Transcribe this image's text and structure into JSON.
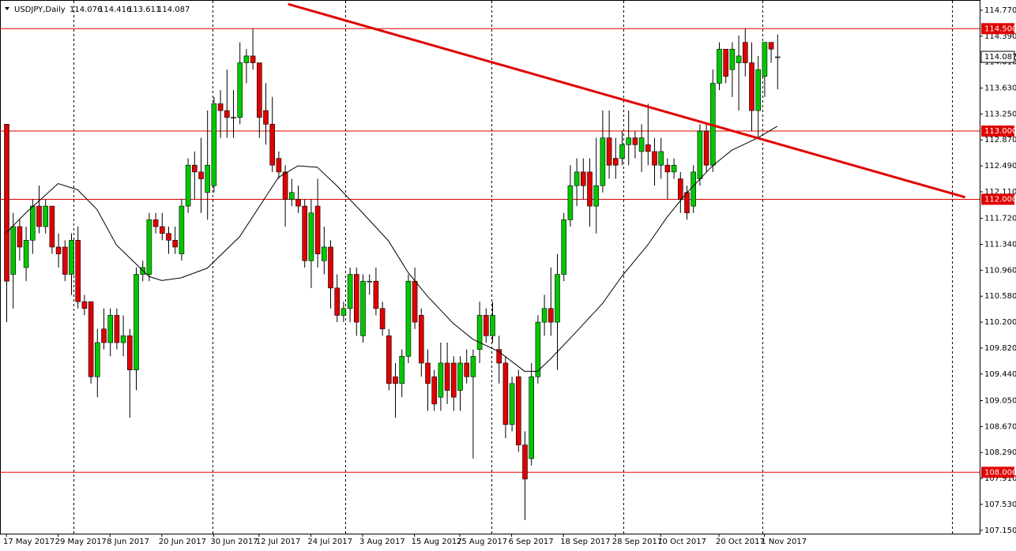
{
  "chart_data": {
    "type": "candlestick",
    "symbol": "USDJPY,Daily",
    "up_color": "#00c800",
    "down_color": "#e00000",
    "line_color": "#e00000",
    "ylim": [
      107.101,
      114.92
    ],
    "yticks": [
      {
        "value": 107.15,
        "label": "107.150"
      },
      {
        "value": 107.53,
        "label": "107.530"
      },
      {
        "value": 107.91,
        "label": "107.910"
      },
      {
        "value": 108.29,
        "label": "108.290"
      },
      {
        "value": 108.67,
        "label": "108.670"
      },
      {
        "value": 109.05,
        "label": "109.050"
      },
      {
        "value": 109.44,
        "label": "109.440"
      },
      {
        "value": 109.82,
        "label": "109.820"
      },
      {
        "value": 110.2,
        "label": "110.200"
      },
      {
        "value": 110.58,
        "label": "110.580"
      },
      {
        "value": 110.96,
        "label": "110.960"
      },
      {
        "value": 111.34,
        "label": "111.340"
      },
      {
        "value": 111.72,
        "label": "111.720"
      },
      {
        "value": 112.11,
        "label": "112.110"
      },
      {
        "value": 112.49,
        "label": "112.490"
      },
      {
        "value": 112.87,
        "label": "112.870"
      },
      {
        "value": 113.25,
        "label": "113.250"
      },
      {
        "value": 113.63,
        "label": "113.630"
      },
      {
        "value": 114.01,
        "label": "114.010"
      },
      {
        "value": 114.39,
        "label": "114.390"
      },
      {
        "value": 114.77,
        "label": "114.770"
      }
    ],
    "levels": [
      {
        "value": 114.5,
        "label": "114.500"
      },
      {
        "value": 113.0,
        "label": "113.000"
      },
      {
        "value": 112.0,
        "label": "112.000"
      },
      {
        "value": 108.0,
        "label": "108.000"
      }
    ],
    "categories": [
      "17 May 2017",
      null,
      null,
      null,
      null,
      null,
      null,
      null,
      "29 May 2017",
      null,
      null,
      null,
      null,
      null,
      null,
      null,
      "8 Jun 2017",
      null,
      null,
      null,
      null,
      null,
      null,
      null,
      "20 Jun 2017",
      null,
      null,
      null,
      null,
      null,
      null,
      null,
      "30 Jun 2017",
      null,
      null,
      null,
      null,
      null,
      null,
      "12 Jul 2017",
      null,
      null,
      null,
      null,
      null,
      null,
      null,
      "24 Jul 2017",
      null,
      null,
      null,
      null,
      null,
      null,
      null,
      "3 Aug 2017",
      null,
      null,
      null,
      null,
      null,
      null,
      null,
      "15 Aug 2017",
      null,
      null,
      null,
      null,
      null,
      null,
      "25 Aug 2017",
      null,
      null,
      null,
      null,
      null,
      null,
      null,
      "6 Sep 2017",
      null,
      null,
      null,
      null,
      null,
      null,
      null,
      "18 Sep 2017",
      null,
      null,
      null,
      null,
      null,
      null,
      null,
      "28 Sep 2017",
      null,
      null,
      null,
      null,
      null,
      null,
      "10 Oct 2017",
      null,
      null,
      null,
      null,
      null,
      null,
      null,
      null,
      "20 Oct 2017",
      null,
      null,
      null,
      null,
      null,
      null,
      "1 Nov 2017",
      null,
      null
    ],
    "open": [
      113.1,
      110.9,
      111.6,
      111.0,
      111.4,
      111.9,
      111.6,
      111.9,
      111.3,
      111.3,
      110.9,
      111.4,
      110.5,
      110.5,
      109.4,
      110.1,
      109.9,
      110.3,
      109.9,
      110.0,
      109.5,
      110.9,
      110.9,
      111.7,
      111.6,
      111.5,
      111.4,
      111.2,
      111.9,
      112.5,
      112.4,
      112.1,
      112.2,
      113.4,
      113.3,
      113.2,
      113.2,
      114.0,
      114.1,
      114.0,
      113.3,
      113.1,
      112.6,
      112.4,
      112.0,
      112.0,
      111.9,
      111.1,
      111.9,
      111.1,
      111.3,
      110.7,
      110.3,
      110.4,
      110.9,
      110.0,
      110.8,
      110.8,
      110.4,
      110.0,
      109.4,
      109.3,
      109.7,
      110.8,
      110.3,
      109.6,
      109.4,
      109.1,
      109.6,
      109.6,
      109.2,
      109.6,
      109.4,
      109.8,
      110.3,
      110.0,
      109.8,
      109.6,
      108.7,
      109.4,
      108.4,
      108.2,
      109.4,
      110.2,
      110.4,
      110.2,
      110.9,
      111.7,
      112.2,
      112.4,
      112.4,
      111.9,
      112.2,
      112.9,
      112.6,
      112.6,
      112.8,
      112.9,
      112.7,
      112.8,
      112.7,
      112.5,
      112.5,
      112.4,
      112.3,
      112.1,
      111.9,
      112.3,
      113.0,
      112.5,
      113.7,
      114.2,
      113.9,
      114.0,
      114.3,
      114.0,
      113.3,
      113.8,
      114.3,
      114.076
    ],
    "high": [
      113.1,
      111.8,
      111.7,
      111.6,
      112.0,
      112.2,
      112.0,
      111.9,
      111.5,
      111.4,
      111.5,
      111.6,
      110.6,
      110.5,
      110.1,
      110.4,
      110.4,
      110.4,
      110.3,
      110.1,
      111.0,
      111.1,
      111.8,
      111.8,
      111.8,
      111.6,
      111.6,
      112.0,
      112.6,
      112.7,
      112.9,
      113.3,
      113.5,
      113.6,
      113.9,
      113.6,
      114.3,
      114.2,
      114.5,
      114.0,
      113.7,
      113.5,
      112.7,
      112.5,
      112.3,
      112.2,
      112.0,
      112.0,
      112.3,
      111.6,
      111.4,
      110.9,
      110.5,
      111.0,
      111.0,
      110.9,
      110.9,
      111.0,
      110.5,
      110.1,
      109.6,
      109.8,
      110.9,
      111.0,
      110.4,
      109.8,
      109.5,
      109.9,
      109.9,
      109.7,
      109.7,
      109.8,
      109.8,
      110.5,
      110.4,
      110.5,
      110.0,
      109.7,
      109.4,
      109.5,
      108.6,
      109.6,
      110.3,
      110.6,
      111.0,
      111.2,
      111.8,
      112.5,
      112.6,
      112.6,
      112.6,
      112.9,
      113.3,
      113.3,
      112.9,
      113.0,
      113.3,
      113.0,
      113.1,
      113.4,
      112.9,
      112.9,
      112.6,
      112.6,
      112.4,
      112.2,
      112.5,
      113.1,
      113.1,
      113.9,
      114.3,
      114.2,
      114.3,
      114.4,
      114.5,
      114.3,
      114.1,
      114.3,
      114.3,
      114.416
    ],
    "low": [
      110.2,
      110.4,
      111.1,
      110.8,
      111.2,
      111.5,
      111.5,
      111.2,
      111.0,
      110.8,
      110.6,
      110.4,
      110.3,
      109.3,
      109.1,
      109.8,
      109.7,
      109.8,
      109.7,
      108.8,
      109.2,
      110.8,
      110.8,
      111.5,
      111.4,
      111.2,
      111.2,
      111.1,
      111.8,
      112.0,
      111.8,
      111.7,
      112.1,
      112.9,
      112.9,
      112.9,
      113.1,
      113.7,
      113.9,
      112.9,
      112.8,
      112.4,
      112.3,
      111.6,
      111.9,
      111.8,
      111.0,
      110.7,
      111.0,
      110.9,
      110.4,
      110.2,
      110.2,
      110.2,
      110.0,
      109.9,
      110.6,
      110.3,
      110.0,
      109.2,
      108.8,
      109.1,
      109.6,
      110.1,
      109.4,
      108.9,
      108.9,
      108.9,
      109.0,
      108.9,
      108.9,
      109.3,
      108.2,
      109.6,
      109.9,
      109.9,
      109.3,
      108.5,
      108.6,
      108.3,
      107.3,
      108.1,
      109.3,
      110.0,
      110.0,
      109.5,
      110.8,
      111.6,
      111.9,
      112.0,
      111.6,
      111.5,
      112.1,
      112.3,
      112.3,
      112.5,
      112.5,
      112.6,
      112.4,
      112.5,
      112.2,
      112.3,
      112.0,
      112.3,
      111.8,
      111.7,
      111.8,
      112.2,
      112.4,
      112.4,
      113.6,
      113.7,
      113.5,
      113.3,
      113.8,
      113.0,
      112.9,
      113.5,
      114.0,
      113.611
    ],
    "close": [
      110.8,
      111.6,
      111.3,
      111.4,
      111.9,
      111.6,
      111.9,
      111.3,
      111.2,
      110.9,
      111.4,
      110.5,
      110.4,
      109.4,
      109.9,
      109.9,
      110.3,
      109.9,
      110.0,
      109.5,
      110.9,
      111.0,
      111.7,
      111.6,
      111.5,
      111.4,
      111.3,
      111.9,
      112.5,
      112.4,
      112.3,
      112.5,
      113.4,
      113.3,
      113.2,
      113.2,
      114.0,
      114.1,
      114.0,
      113.2,
      113.1,
      112.5,
      112.4,
      112.0,
      112.1,
      111.9,
      111.1,
      111.8,
      111.2,
      111.3,
      110.7,
      110.3,
      110.4,
      110.9,
      110.2,
      110.8,
      110.8,
      110.4,
      110.1,
      109.3,
      109.3,
      109.7,
      110.8,
      110.2,
      109.6,
      109.3,
      109.0,
      109.6,
      109.2,
      109.1,
      109.6,
      109.4,
      109.7,
      110.3,
      110.0,
      110.3,
      109.6,
      108.7,
      109.3,
      108.4,
      107.9,
      109.4,
      110.2,
      110.4,
      110.2,
      110.9,
      111.7,
      112.2,
      112.4,
      112.2,
      111.9,
      112.2,
      112.9,
      112.5,
      112.5,
      112.8,
      112.9,
      112.8,
      112.9,
      112.7,
      112.5,
      112.7,
      112.4,
      112.5,
      112.0,
      111.8,
      112.4,
      113.0,
      112.5,
      113.7,
      114.2,
      113.8,
      114.2,
      114.1,
      114.0,
      113.3,
      113.9,
      114.3,
      114.2,
      114.087
    ],
    "moving_average": {
      "x": [
        0,
        3,
        8,
        11,
        14,
        17,
        22,
        24,
        27,
        31,
        36,
        40,
        42,
        45,
        48,
        51,
        55,
        59,
        62,
        65,
        69,
        72,
        76,
        80,
        82,
        84,
        88,
        92,
        95,
        99,
        102,
        105,
        109,
        112,
        116,
        119
      ],
      "values": [
        111.51,
        111.8,
        112.23,
        112.14,
        111.85,
        111.33,
        110.87,
        110.81,
        110.85,
        110.99,
        111.45,
        112.03,
        112.32,
        112.49,
        112.47,
        112.2,
        111.8,
        111.39,
        110.93,
        110.58,
        110.18,
        109.95,
        109.77,
        109.48,
        109.48,
        109.66,
        110.06,
        110.47,
        110.87,
        111.33,
        111.74,
        112.09,
        112.49,
        112.72,
        112.9,
        113.07
      ]
    },
    "trendline": {
      "x": [
        43.5,
        148
      ],
      "values": [
        114.86,
        112.03
      ]
    }
  }
}
